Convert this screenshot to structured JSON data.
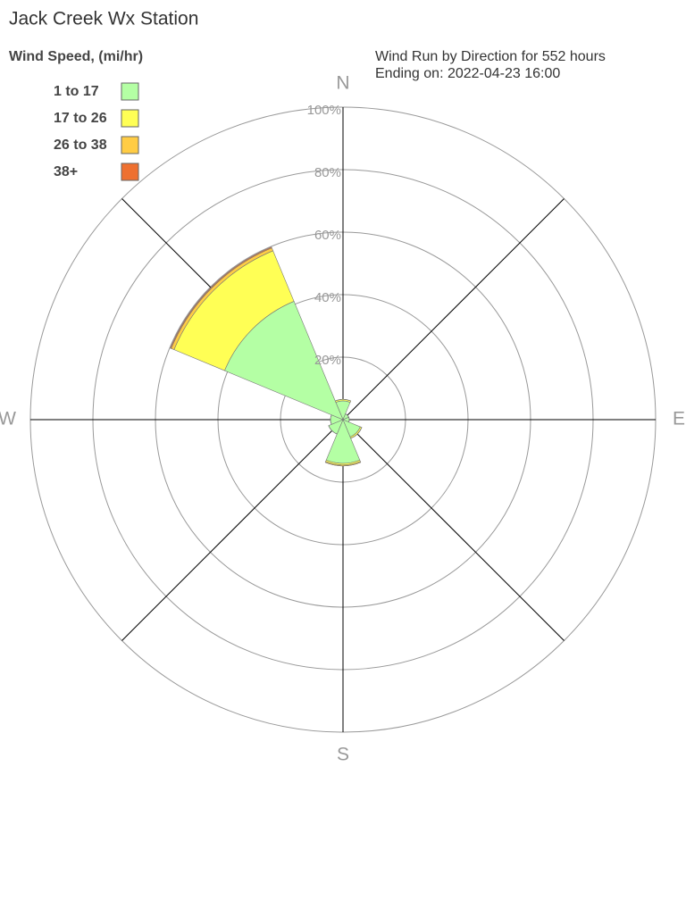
{
  "chart_data": {
    "type": "windrose",
    "title": "Jack Creek Wx Station",
    "subtitle": [
      "Wind Run by Direction for 552 hours",
      "Ending on: 2022-04-23 16:00"
    ],
    "legend_title": "Wind Speed, (mi/hr)",
    "categories": [
      "N",
      null,
      "E",
      null,
      "S",
      null,
      "W",
      null
    ],
    "series": [
      {
        "name": "1 to 17",
        "color": "#b4ffa4",
        "values": [
          6,
          2,
          2,
          6,
          14,
          5,
          4,
          41
        ]
      },
      {
        "name": "17 to 26",
        "color": "#ffff55",
        "values": [
          0.5,
          0,
          0,
          0.5,
          0.5,
          0,
          0,
          17.5
        ]
      },
      {
        "name": "26 to 38",
        "color": "#ffcc44",
        "values": [
          0,
          0,
          0,
          0,
          0.3,
          0,
          0,
          1
        ]
      },
      {
        "name": "38+",
        "color": "#ee7030",
        "values": [
          0,
          0,
          0,
          0,
          0,
          0,
          0,
          0.3
        ]
      }
    ],
    "rlim": [
      0,
      100
    ],
    "rticks": [
      {
        "value": 20,
        "label": "20%"
      },
      {
        "value": 40,
        "label": "40%"
      },
      {
        "value": 60,
        "label": "60%"
      },
      {
        "value": 80,
        "label": "80%"
      },
      {
        "value": 100,
        "label": "100%"
      }
    ]
  }
}
